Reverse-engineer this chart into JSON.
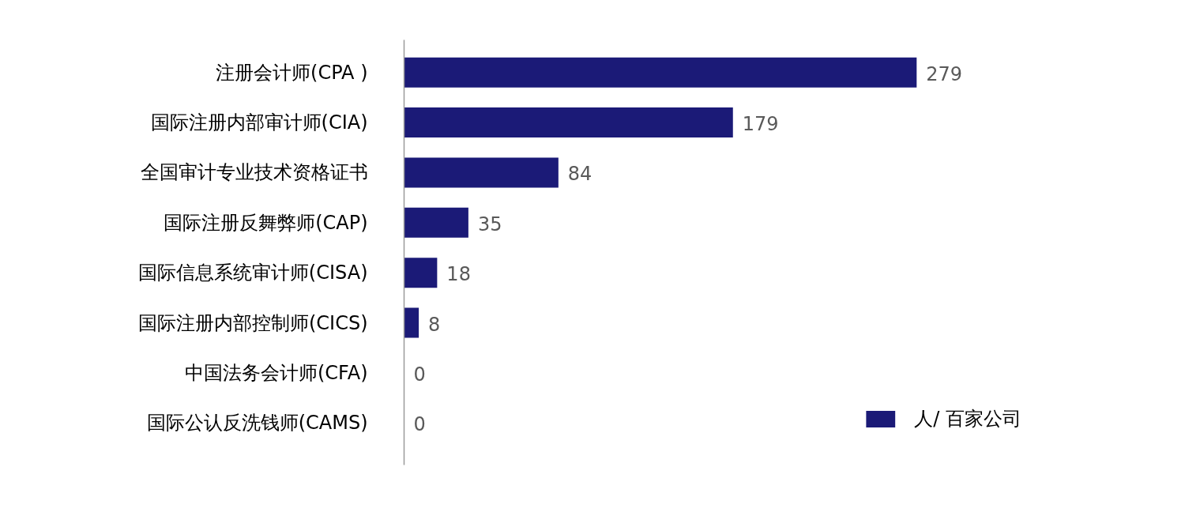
{
  "chart_data": {
    "type": "bar",
    "orientation": "horizontal",
    "categories": [
      "注册会计师(CPA )",
      "国际注册内部审计师(CIA)",
      "全国审计专业技术资格证书",
      "国际注册反舞弊师(CAP)",
      "国际信息系统审计师(CISA)",
      "国际注册内部控制师(CICS)",
      "中国法务会计师(CFA)",
      "国际公认反洗钱师(CAMS)"
    ],
    "series": [
      {
        "name": "人/ 百家公司",
        "color": "#1b1a77",
        "values": [
          279,
          179,
          84,
          35,
          18,
          8,
          0,
          0
        ]
      }
    ],
    "data_labels": true,
    "tick_labels": "y",
    "grid": false,
    "legend": "bottom right"
  }
}
